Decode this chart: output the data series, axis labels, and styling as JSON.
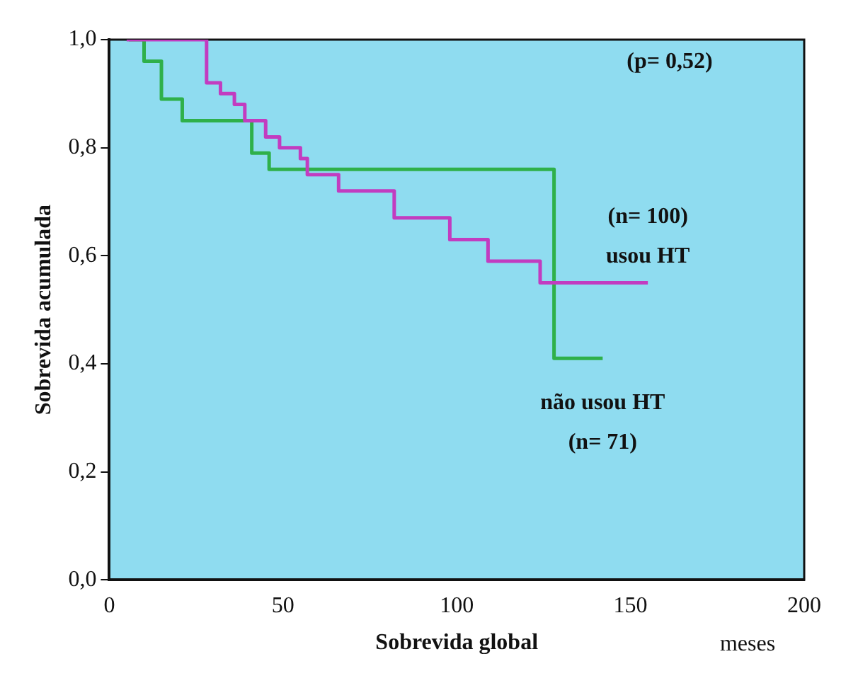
{
  "chart_data": {
    "type": "step",
    "xlabel": "Sobrevida global",
    "ylabel": "Sobrevida acumulada",
    "series": [
      {
        "name": "usou HT",
        "color": "#c23cc0",
        "x": [
          5,
          28,
          32,
          36,
          39,
          45,
          49,
          55,
          57,
          66,
          82,
          98,
          109,
          124,
          155
        ],
        "values": [
          1.0,
          0.92,
          0.9,
          0.88,
          0.85,
          0.82,
          0.8,
          0.78,
          0.75,
          0.72,
          0.67,
          0.63,
          0.59,
          0.55,
          0.55
        ]
      },
      {
        "name": "não usou HT",
        "color": "#2fb04a",
        "x": [
          5.6,
          10,
          15,
          21,
          41,
          46,
          128,
          142
        ],
        "values": [
          1.0,
          0.96,
          0.89,
          0.85,
          0.79,
          0.76,
          0.41,
          0.41
        ]
      }
    ],
    "xlim": [
      0,
      200
    ],
    "xticks": [
      0,
      50,
      100,
      150,
      200
    ],
    "ylim": [
      0,
      1
    ],
    "yticks": [
      {
        "value": 0,
        "label": "0,0"
      },
      {
        "value": 0.2,
        "label": "0,2"
      },
      {
        "value": 0.4,
        "label": "0,4"
      },
      {
        "value": 0.6,
        "label": "0,6"
      },
      {
        "value": 0.8,
        "label": "0,8"
      },
      {
        "value": 1,
        "label": "1,0"
      }
    ],
    "annotations": [
      "(p= 0,52)",
      "(n= 100)",
      "(n= 71)",
      "meses"
    ],
    "grid": false,
    "legend": false,
    "marker": "none",
    "line_style": "solid"
  }
}
